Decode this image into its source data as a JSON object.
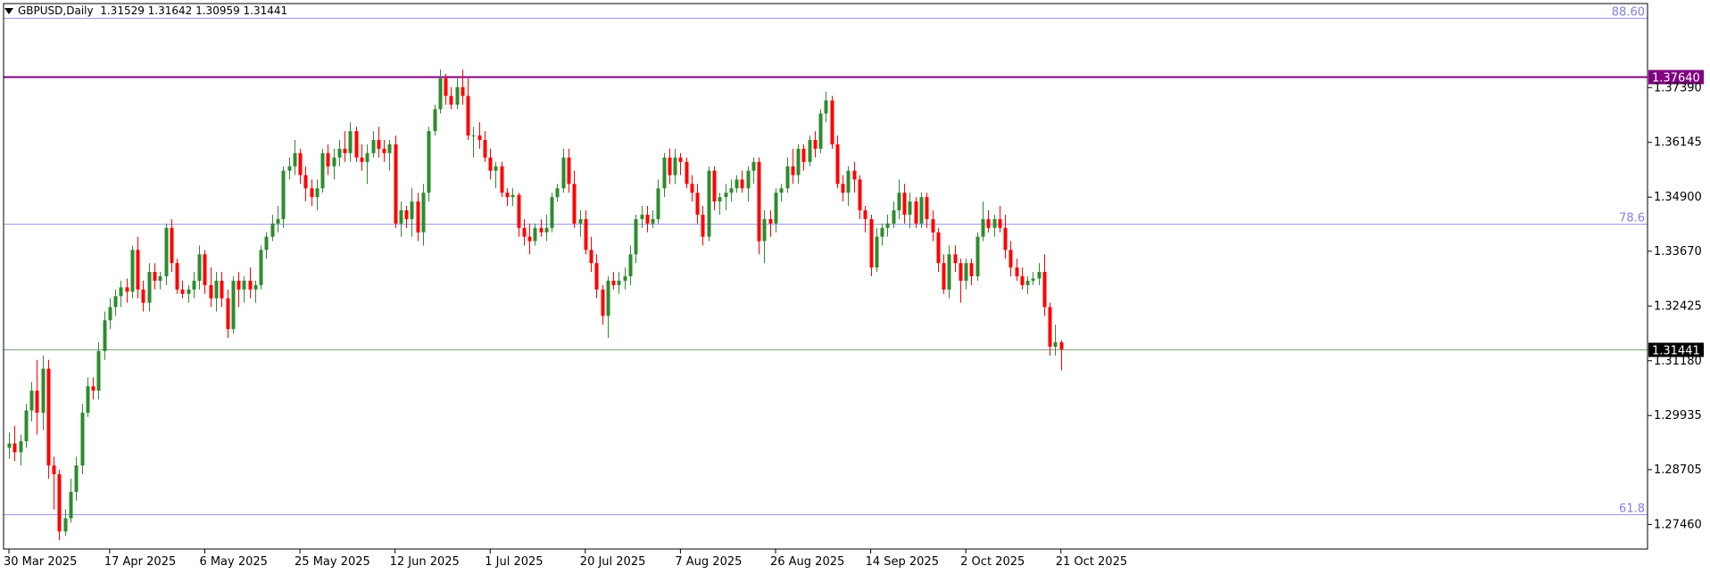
{
  "header": {
    "symbol_label": "GBPUSD,Daily",
    "ohlc_text": "1.31529 1.31642 1.30959 1.31441"
  },
  "colors": {
    "bull": "#2e8b2e",
    "bear": "#ff0000",
    "fib_line": "#9a9ae8",
    "fib_label": "#8080e0",
    "price_line": "#7f9f7f",
    "level_line": "#800080"
  },
  "chart_data": {
    "type": "candlestick",
    "symbol": "GBPUSD",
    "timeframe": "Daily",
    "ylim": [
      1.269,
      1.393
    ],
    "grid": false,
    "y_ticks": [
      "1.37390",
      "1.36145",
      "1.34900",
      "1.33670",
      "1.32425",
      "1.31180",
      "1.29935",
      "1.28705",
      "1.27460"
    ],
    "x_ticks": [
      {
        "label": "30 Mar 2025",
        "bar": 0
      },
      {
        "label": "17 Apr 2025",
        "bar": 18
      },
      {
        "label": "6 May 2025",
        "bar": 35
      },
      {
        "label": "25 May 2025",
        "bar": 52
      },
      {
        "label": "12 Jun 2025",
        "bar": 69
      },
      {
        "label": "1 Jul 2025",
        "bar": 86
      },
      {
        "label": "20 Jul 2025",
        "bar": 103
      },
      {
        "label": "7 Aug 2025",
        "bar": 120
      },
      {
        "label": "26 Aug 2025",
        "bar": 137
      },
      {
        "label": "14 Sep 2025",
        "bar": 154
      },
      {
        "label": "2 Oct 2025",
        "bar": 171
      },
      {
        "label": "21 Oct 2025",
        "bar": 188
      }
    ],
    "levels": [
      {
        "label": "88.60",
        "value": 1.3897,
        "kind": "fib"
      },
      {
        "label": "1.37640",
        "value": 1.3764,
        "kind": "level"
      },
      {
        "label": "78.6",
        "value": 1.343,
        "kind": "fib"
      },
      {
        "label": "1.31441",
        "value": 1.31441,
        "kind": "current"
      },
      {
        "label": "61.8",
        "value": 1.277,
        "kind": "fib"
      }
    ],
    "candles": [
      [
        1.292,
        1.2955,
        1.2895,
        1.293
      ],
      [
        1.293,
        1.297,
        1.289,
        1.291
      ],
      [
        1.291,
        1.295,
        1.288,
        1.2935
      ],
      [
        1.2935,
        1.302,
        1.292,
        1.3005
      ],
      [
        1.3005,
        1.307,
        1.298,
        1.305
      ],
      [
        1.305,
        1.312,
        1.295,
        1.3
      ],
      [
        1.3,
        1.313,
        1.296,
        1.31
      ],
      [
        1.31,
        1.312,
        1.285,
        1.288
      ],
      [
        1.288,
        1.29,
        1.278,
        1.286
      ],
      [
        1.286,
        1.287,
        1.271,
        1.273
      ],
      [
        1.273,
        1.278,
        1.272,
        1.276
      ],
      [
        1.276,
        1.285,
        1.275,
        1.282
      ],
      [
        1.282,
        1.29,
        1.28,
        1.288
      ],
      [
        1.288,
        1.302,
        1.286,
        1.3
      ],
      [
        1.3,
        1.308,
        1.299,
        1.306
      ],
      [
        1.306,
        1.308,
        1.303,
        1.305
      ],
      [
        1.305,
        1.316,
        1.303,
        1.314
      ],
      [
        1.314,
        1.323,
        1.312,
        1.321
      ],
      [
        1.321,
        1.326,
        1.319,
        1.324
      ],
      [
        1.324,
        1.328,
        1.322,
        1.3265
      ],
      [
        1.3265,
        1.33,
        1.324,
        1.3285
      ],
      [
        1.3285,
        1.3305,
        1.325,
        1.3275
      ],
      [
        1.3275,
        1.338,
        1.326,
        1.337
      ],
      [
        1.337,
        1.34,
        1.326,
        1.328
      ],
      [
        1.328,
        1.33,
        1.323,
        1.325
      ],
      [
        1.325,
        1.334,
        1.323,
        1.332
      ],
      [
        1.332,
        1.334,
        1.328,
        1.33
      ],
      [
        1.33,
        1.332,
        1.328,
        1.331
      ],
      [
        1.331,
        1.343,
        1.329,
        1.342
      ],
      [
        1.342,
        1.344,
        1.332,
        1.334
      ],
      [
        1.334,
        1.335,
        1.327,
        1.328
      ],
      [
        1.328,
        1.33,
        1.326,
        1.327
      ],
      [
        1.327,
        1.329,
        1.325,
        1.328
      ],
      [
        1.328,
        1.332,
        1.326,
        1.33
      ],
      [
        1.33,
        1.338,
        1.328,
        1.336
      ],
      [
        1.336,
        1.337,
        1.327,
        1.329
      ],
      [
        1.329,
        1.333,
        1.324,
        1.326
      ],
      [
        1.326,
        1.332,
        1.323,
        1.33
      ],
      [
        1.33,
        1.332,
        1.324,
        1.326
      ],
      [
        1.326,
        1.328,
        1.317,
        1.319
      ],
      [
        1.319,
        1.331,
        1.318,
        1.33
      ],
      [
        1.33,
        1.332,
        1.324,
        1.328
      ],
      [
        1.328,
        1.331,
        1.325,
        1.33
      ],
      [
        1.33,
        1.333,
        1.326,
        1.328
      ],
      [
        1.328,
        1.33,
        1.325,
        1.329
      ],
      [
        1.329,
        1.338,
        1.328,
        1.337
      ],
      [
        1.337,
        1.341,
        1.335,
        1.34
      ],
      [
        1.34,
        1.345,
        1.339,
        1.343
      ],
      [
        1.343,
        1.347,
        1.341,
        1.344
      ],
      [
        1.344,
        1.356,
        1.342,
        1.355
      ],
      [
        1.355,
        1.358,
        1.353,
        1.356
      ],
      [
        1.356,
        1.362,
        1.354,
        1.359
      ],
      [
        1.359,
        1.36,
        1.352,
        1.354
      ],
      [
        1.354,
        1.356,
        1.348,
        1.351
      ],
      [
        1.351,
        1.353,
        1.347,
        1.349
      ],
      [
        1.349,
        1.353,
        1.346,
        1.351
      ],
      [
        1.351,
        1.36,
        1.35,
        1.359
      ],
      [
        1.359,
        1.361,
        1.354,
        1.356
      ],
      [
        1.356,
        1.36,
        1.353,
        1.358
      ],
      [
        1.358,
        1.362,
        1.356,
        1.36
      ],
      [
        1.36,
        1.364,
        1.357,
        1.359
      ],
      [
        1.359,
        1.366,
        1.357,
        1.364
      ],
      [
        1.364,
        1.365,
        1.357,
        1.358
      ],
      [
        1.358,
        1.361,
        1.355,
        1.357
      ],
      [
        1.357,
        1.361,
        1.352,
        1.359
      ],
      [
        1.359,
        1.364,
        1.358,
        1.362
      ],
      [
        1.362,
        1.365,
        1.358,
        1.36
      ],
      [
        1.36,
        1.362,
        1.357,
        1.359
      ],
      [
        1.359,
        1.362,
        1.355,
        1.361
      ],
      [
        1.361,
        1.363,
        1.342,
        1.343
      ],
      [
        1.343,
        1.348,
        1.34,
        1.346
      ],
      [
        1.346,
        1.347,
        1.342,
        1.344
      ],
      [
        1.344,
        1.351,
        1.34,
        1.348
      ],
      [
        1.348,
        1.35,
        1.339,
        1.341
      ],
      [
        1.341,
        1.352,
        1.338,
        1.35
      ],
      [
        1.35,
        1.365,
        1.348,
        1.364
      ],
      [
        1.364,
        1.37,
        1.363,
        1.369
      ],
      [
        1.369,
        1.378,
        1.368,
        1.376
      ],
      [
        1.376,
        1.377,
        1.37,
        1.372
      ],
      [
        1.372,
        1.374,
        1.369,
        1.37
      ],
      [
        1.37,
        1.376,
        1.369,
        1.374
      ],
      [
        1.374,
        1.378,
        1.37,
        1.372
      ],
      [
        1.372,
        1.376,
        1.362,
        1.363
      ],
      [
        1.363,
        1.365,
        1.358,
        1.363
      ],
      [
        1.363,
        1.366,
        1.36,
        1.362
      ],
      [
        1.362,
        1.364,
        1.357,
        1.358
      ],
      [
        1.358,
        1.36,
        1.353,
        1.355
      ],
      [
        1.355,
        1.357,
        1.351,
        1.356
      ],
      [
        1.356,
        1.357,
        1.349,
        1.35
      ],
      [
        1.35,
        1.351,
        1.347,
        1.349
      ],
      [
        1.349,
        1.351,
        1.347,
        1.3495
      ],
      [
        1.3495,
        1.35,
        1.34,
        1.342
      ],
      [
        1.342,
        1.344,
        1.338,
        1.34
      ],
      [
        1.34,
        1.343,
        1.336,
        1.339
      ],
      [
        1.339,
        1.343,
        1.338,
        1.342
      ],
      [
        1.342,
        1.344,
        1.34,
        1.341
      ],
      [
        1.341,
        1.345,
        1.339,
        1.342
      ],
      [
        1.342,
        1.35,
        1.341,
        1.349
      ],
      [
        1.349,
        1.352,
        1.348,
        1.351
      ],
      [
        1.351,
        1.36,
        1.35,
        1.358
      ],
      [
        1.358,
        1.36,
        1.35,
        1.352
      ],
      [
        1.352,
        1.355,
        1.342,
        1.343
      ],
      [
        1.343,
        1.346,
        1.34,
        1.344
      ],
      [
        1.344,
        1.346,
        1.336,
        1.337
      ],
      [
        1.337,
        1.34,
        1.332,
        1.334
      ],
      [
        1.334,
        1.336,
        1.326,
        1.328
      ],
      [
        1.328,
        1.329,
        1.32,
        1.322
      ],
      [
        1.322,
        1.331,
        1.317,
        1.33
      ],
      [
        1.33,
        1.332,
        1.328,
        1.329
      ],
      [
        1.329,
        1.332,
        1.327,
        1.33
      ],
      [
        1.33,
        1.333,
        1.328,
        1.331
      ],
      [
        1.331,
        1.338,
        1.329,
        1.336
      ],
      [
        1.336,
        1.345,
        1.334,
        1.344
      ],
      [
        1.344,
        1.347,
        1.342,
        1.345
      ],
      [
        1.345,
        1.347,
        1.341,
        1.343
      ],
      [
        1.343,
        1.346,
        1.342,
        1.344
      ],
      [
        1.344,
        1.353,
        1.343,
        1.351
      ],
      [
        1.351,
        1.359,
        1.349,
        1.358
      ],
      [
        1.358,
        1.36,
        1.352,
        1.354
      ],
      [
        1.354,
        1.36,
        1.352,
        1.358
      ],
      [
        1.358,
        1.359,
        1.354,
        1.357
      ],
      [
        1.357,
        1.358,
        1.351,
        1.352
      ],
      [
        1.352,
        1.354,
        1.348,
        1.35
      ],
      [
        1.35,
        1.352,
        1.343,
        1.345
      ],
      [
        1.345,
        1.347,
        1.338,
        1.34
      ],
      [
        1.34,
        1.356,
        1.339,
        1.355
      ],
      [
        1.355,
        1.356,
        1.346,
        1.348
      ],
      [
        1.348,
        1.35,
        1.345,
        1.349
      ],
      [
        1.349,
        1.352,
        1.346,
        1.35
      ],
      [
        1.35,
        1.353,
        1.348,
        1.351
      ],
      [
        1.351,
        1.354,
        1.35,
        1.353
      ],
      [
        1.353,
        1.355,
        1.35,
        1.351
      ],
      [
        1.351,
        1.356,
        1.348,
        1.355
      ],
      [
        1.355,
        1.358,
        1.352,
        1.357
      ],
      [
        1.357,
        1.358,
        1.336,
        1.339
      ],
      [
        1.339,
        1.346,
        1.334,
        1.344
      ],
      [
        1.344,
        1.346,
        1.34,
        1.343
      ],
      [
        1.343,
        1.351,
        1.341,
        1.35
      ],
      [
        1.35,
        1.352,
        1.348,
        1.351
      ],
      [
        1.351,
        1.358,
        1.35,
        1.356
      ],
      [
        1.356,
        1.36,
        1.352,
        1.354
      ],
      [
        1.354,
        1.361,
        1.352,
        1.36
      ],
      [
        1.36,
        1.361,
        1.355,
        1.357
      ],
      [
        1.357,
        1.363,
        1.356,
        1.362
      ],
      [
        1.362,
        1.364,
        1.358,
        1.36
      ],
      [
        1.36,
        1.369,
        1.359,
        1.368
      ],
      [
        1.368,
        1.373,
        1.366,
        1.371
      ],
      [
        1.371,
        1.372,
        1.36,
        1.361
      ],
      [
        1.361,
        1.363,
        1.351,
        1.352
      ],
      [
        1.352,
        1.354,
        1.348,
        1.35
      ],
      [
        1.35,
        1.356,
        1.347,
        1.355
      ],
      [
        1.355,
        1.357,
        1.35,
        1.353
      ],
      [
        1.353,
        1.354,
        1.344,
        1.346
      ],
      [
        1.346,
        1.347,
        1.341,
        1.344
      ],
      [
        1.344,
        1.345,
        1.331,
        1.333
      ],
      [
        1.333,
        1.342,
        1.332,
        1.34
      ],
      [
        1.34,
        1.343,
        1.338,
        1.342
      ],
      [
        1.342,
        1.345,
        1.34,
        1.343
      ],
      [
        1.343,
        1.348,
        1.342,
        1.346
      ],
      [
        1.346,
        1.353,
        1.344,
        1.35
      ],
      [
        1.35,
        1.352,
        1.343,
        1.345
      ],
      [
        1.345,
        1.35,
        1.342,
        1.348
      ],
      [
        1.348,
        1.349,
        1.342,
        1.343
      ],
      [
        1.343,
        1.35,
        1.342,
        1.349
      ],
      [
        1.349,
        1.35,
        1.342,
        1.344
      ],
      [
        1.344,
        1.346,
        1.339,
        1.341
      ],
      [
        1.341,
        1.342,
        1.332,
        1.334
      ],
      [
        1.334,
        1.336,
        1.327,
        1.328
      ],
      [
        1.328,
        1.338,
        1.326,
        1.336
      ],
      [
        1.336,
        1.338,
        1.332,
        1.334
      ],
      [
        1.334,
        1.335,
        1.325,
        1.33
      ],
      [
        1.33,
        1.335,
        1.328,
        1.334
      ],
      [
        1.334,
        1.335,
        1.329,
        1.331
      ],
      [
        1.331,
        1.341,
        1.33,
        1.34
      ],
      [
        1.34,
        1.348,
        1.339,
        1.344
      ],
      [
        1.344,
        1.346,
        1.341,
        1.342
      ],
      [
        1.342,
        1.345,
        1.34,
        1.344
      ],
      [
        1.344,
        1.347,
        1.341,
        1.342
      ],
      [
        1.342,
        1.345,
        1.335,
        1.337
      ],
      [
        1.337,
        1.339,
        1.331,
        1.333
      ],
      [
        1.333,
        1.335,
        1.33,
        1.331
      ],
      [
        1.331,
        1.333,
        1.328,
        1.329
      ],
      [
        1.329,
        1.331,
        1.327,
        1.33
      ],
      [
        1.33,
        1.332,
        1.329,
        1.3305
      ],
      [
        1.3305,
        1.334,
        1.329,
        1.332
      ],
      [
        1.332,
        1.336,
        1.322,
        1.324
      ],
      [
        1.324,
        1.325,
        1.313,
        1.315
      ],
      [
        1.315,
        1.32,
        1.313,
        1.316
      ],
      [
        1.316,
        1.3165,
        1.3096,
        1.3144
      ]
    ]
  }
}
